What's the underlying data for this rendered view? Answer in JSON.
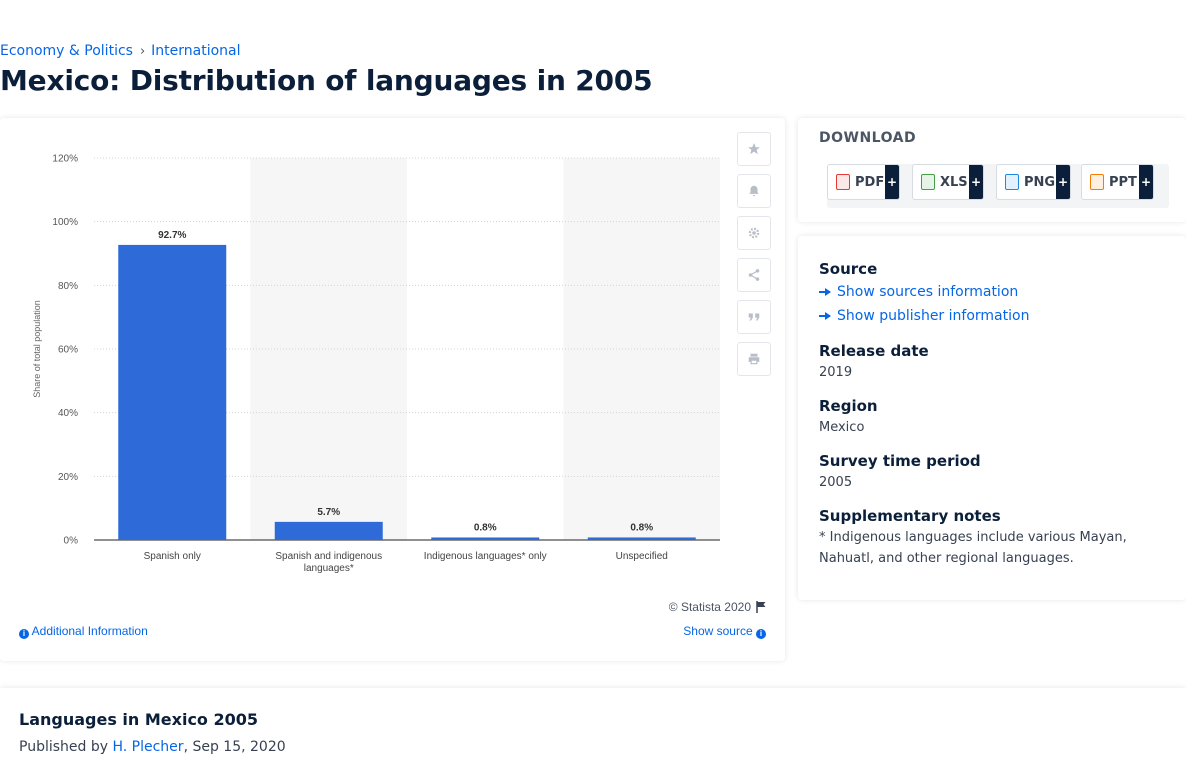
{
  "breadcrumb": {
    "item1": "Economy & Politics",
    "item2": "International",
    "separator": "›"
  },
  "page_title": "Mexico: Distribution of languages in 2005",
  "chart_tools": [
    "star-icon",
    "bell-icon",
    "gear-icon",
    "share-icon",
    "quote-icon",
    "print-icon"
  ],
  "chart_data": {
    "type": "bar",
    "categories": [
      "Spanish only",
      "Spanish and indigenous languages*",
      "Indigenous languages* only",
      "Unspecified"
    ],
    "category_lines": [
      [
        "Spanish only"
      ],
      [
        "Spanish and indigenous",
        "languages*"
      ],
      [
        "Indigenous languages* only"
      ],
      [
        "Unspecified"
      ]
    ],
    "values": [
      92.7,
      5.7,
      0.8,
      0.8
    ],
    "value_labels": [
      "92.7%",
      "5.7%",
      "0.8%",
      "0.8%"
    ],
    "ylabel": "Share of total population",
    "yticks": [
      "0%",
      "20%",
      "40%",
      "60%",
      "80%",
      "100%",
      "120%"
    ],
    "ylim": [
      0,
      120
    ],
    "grid": true,
    "bar_color": "#2f6bd8",
    "band_color": "#f6f6f6"
  },
  "chart_footer": {
    "copyright": "© Statista 2020",
    "additional_info": "Additional Information",
    "show_source": "Show source"
  },
  "download": {
    "title": "DOWNLOAD",
    "buttons": [
      {
        "label": "PDF",
        "plus": "+",
        "color": "#e53935"
      },
      {
        "label": "XLS",
        "plus": "+",
        "color": "#43a047"
      },
      {
        "label": "PNG",
        "plus": "+",
        "color": "#1e88e5"
      },
      {
        "label": "PPT",
        "plus": "+",
        "color": "#f57c00"
      }
    ]
  },
  "info": {
    "source_heading": "Source",
    "show_sources": "Show sources information",
    "show_publisher": "Show publisher information",
    "release_heading": "Release date",
    "release_value": "2019",
    "region_heading": "Region",
    "region_value": "Mexico",
    "survey_heading": "Survey time period",
    "survey_value": "2005",
    "notes_heading": "Supplementary notes",
    "notes_value": "* Indigenous languages include various Mayan, Nahuatl, and other regional languages."
  },
  "bottom": {
    "title": "Languages in Mexico 2005",
    "published_prefix": "Published by ",
    "author": "H. Plecher",
    "date": ", Sep 15, 2020"
  }
}
